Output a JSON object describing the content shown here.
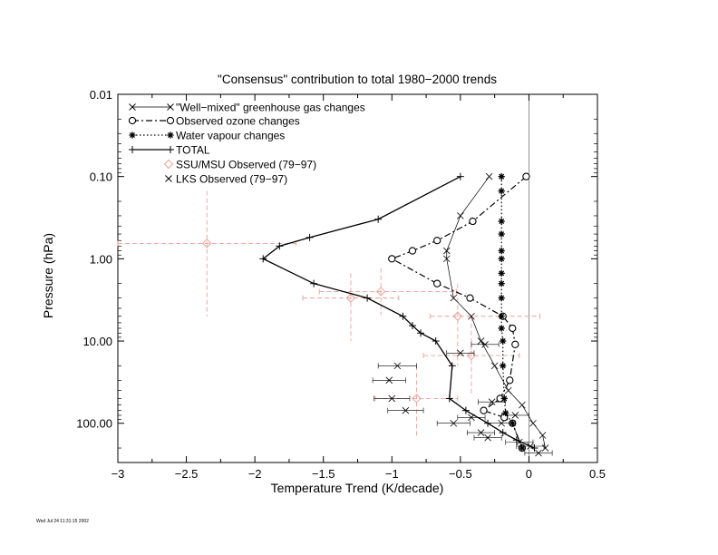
{
  "footer": {
    "timestamp": "Wed Jul 24 11:31:15 2002"
  },
  "colors": {
    "axis": "#000000",
    "series": "#000000",
    "observed": "#e8a39a"
  },
  "chart_data": {
    "type": "line",
    "title": "\"Consensus\" contribution to total 1980−2000 trends",
    "xlabel": "Temperature Trend (K/decade)",
    "ylabel": "Pressure (hPa)",
    "xlim": [
      -3,
      0.5
    ],
    "ylim": [
      0.01,
      300
    ],
    "yscale": "log",
    "y_inverted": true,
    "grid": false,
    "legend_position": "top-left",
    "xticks": [
      -3,
      -2.5,
      -2,
      -1.5,
      -1,
      -0.5,
      0,
      0.5
    ],
    "xtick_labels": [
      "−3",
      "−2.5",
      "−2",
      "−1.5",
      "−1",
      "−0.5",
      "0",
      "0.5"
    ],
    "yticks": [
      0.01,
      0.1,
      1,
      10,
      100
    ],
    "ytick_labels": [
      "0.01",
      "0.10",
      "1.00",
      "10.00",
      "100.00"
    ],
    "zero_line": 0,
    "series": [
      {
        "name": "\"Well−mixed\" greenhouse gas changes",
        "marker": "x",
        "line": "solid-thin",
        "x": [
          -0.29,
          -0.5,
          -0.6,
          -0.6,
          -0.55,
          -0.42,
          -0.35,
          -0.25,
          -0.15,
          -0.05,
          0.03,
          0.1,
          0.12
        ],
        "y": [
          0.1,
          0.3,
          0.8,
          1.0,
          3.0,
          5.0,
          10.0,
          20.0,
          40.0,
          60.0,
          100.0,
          140.0,
          200.0
        ]
      },
      {
        "name": "Observed ozone changes",
        "marker": "o",
        "line": "dash-dot",
        "x": [
          -0.02,
          -0.41,
          -0.67,
          -0.85,
          -1.0,
          -0.67,
          -0.43,
          -0.19,
          -0.12,
          -0.1,
          -0.14,
          -0.21,
          -0.33,
          -0.18,
          -0.12,
          -0.05
        ],
        "y": [
          0.1,
          0.35,
          0.6,
          0.8,
          1.0,
          2.0,
          3.0,
          5.0,
          7.0,
          11.0,
          30.0,
          50.0,
          70.0,
          85.0,
          100.0,
          200.0
        ]
      },
      {
        "name": "Water vapour changes",
        "marker": "*",
        "line": "dotted",
        "x": [
          -0.2,
          -0.2,
          -0.2,
          -0.2,
          -0.2,
          -0.2,
          -0.2,
          -0.2,
          -0.2,
          -0.2,
          -0.2,
          -0.19,
          -0.19,
          -0.18,
          -0.17,
          -0.12,
          -0.05
        ],
        "y": [
          0.1,
          0.15,
          0.35,
          0.5,
          0.8,
          1.0,
          1.5,
          2.0,
          3.0,
          5.0,
          7.0,
          10.0,
          20.0,
          50.0,
          75.0,
          100.0,
          200.0
        ]
      },
      {
        "name": "TOTAL",
        "marker": "+",
        "line": "solid",
        "x": [
          -0.5,
          -1.1,
          -1.6,
          -1.82,
          -1.94,
          -1.57,
          -1.18,
          -0.92,
          -0.85,
          -0.79,
          -0.68,
          -0.56,
          -0.58,
          -0.46,
          -0.3,
          -0.19,
          -0.09,
          0.04
        ],
        "y": [
          0.1,
          0.33,
          0.55,
          0.7,
          1.0,
          2.0,
          3.0,
          5.0,
          6.5,
          8.0,
          10.0,
          20.0,
          50.0,
          70.0,
          100.0,
          130.0,
          160.0,
          200.0
        ]
      },
      {
        "name": "SSU/MSU Observed (79−97)",
        "marker": "diamond",
        "line": "none",
        "error_bars": true,
        "x": [
          -2.35,
          -1.08,
          -1.3,
          -0.52,
          -0.42,
          -0.82
        ],
        "y": [
          0.65,
          2.5,
          3.0,
          5.0,
          15.0,
          50.0
        ],
        "xerr": [
          [
            0.65,
            0.65
          ],
          [
            0.45,
            0.55
          ],
          [
            0.35,
            0.35
          ],
          [
            0.2,
            0.6
          ],
          [
            0.35,
            0.35
          ],
          [
            0.3,
            0.3
          ]
        ],
        "yerr": [
          [
            0.15,
            5.0
          ],
          [
            1.3,
            4.8
          ],
          [
            1.5,
            10.0
          ],
          [
            2.0,
            20.0
          ],
          [
            5.0,
            45.0
          ],
          [
            20.0,
            150.0
          ]
        ]
      },
      {
        "name": "LKS Observed (79−97)",
        "marker": "x",
        "line": "none",
        "error_bars": true,
        "x": [
          -0.96,
          -1.02,
          -1.0,
          -0.9,
          -0.55,
          -0.35,
          -0.42,
          -0.3,
          -0.5,
          -0.2,
          -0.1,
          -0.32,
          -0.27,
          -0.07,
          0.01,
          0.07
        ],
        "y": [
          20.0,
          30.0,
          50.0,
          70.0,
          100.0,
          130.0,
          85.0,
          150.0,
          14.0,
          100.0,
          80.0,
          11.0,
          55.0,
          170.0,
          190.0,
          230.0
        ],
        "xerr": [
          0.14,
          0.12,
          0.13,
          0.13,
          0.12,
          0.1,
          0.1,
          0.1,
          0.1,
          0.1,
          0.1,
          0.1,
          0.1,
          0.1,
          0.1,
          0.1
        ]
      }
    ]
  }
}
